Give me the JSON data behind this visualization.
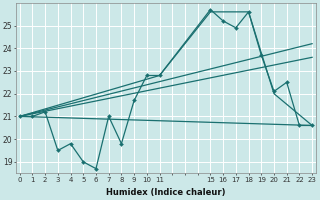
{
  "bg_color": "#cce8e8",
  "grid_color": "#ffffff",
  "line_color": "#1a7070",
  "xlabel": "Humidex (Indice chaleur)",
  "xlim": [
    -0.3,
    23.3
  ],
  "ylim": [
    18.5,
    26.0
  ],
  "yticks": [
    19,
    20,
    21,
    22,
    23,
    24,
    25
  ],
  "xticks": [
    0,
    1,
    2,
    3,
    4,
    5,
    6,
    7,
    8,
    9,
    10,
    11,
    15,
    16,
    17,
    18,
    19,
    20,
    21,
    22,
    23
  ],
  "xtick_labels": [
    "0",
    "1",
    "2",
    "3",
    "4",
    "5",
    "6",
    "7",
    "8",
    "9",
    "10",
    "11",
    "",
    "",
    "",
    "15",
    "16",
    "17",
    "18",
    "19",
    "20",
    "21",
    "22",
    "23"
  ],
  "line1_x": [
    0,
    1,
    2,
    3,
    4,
    5,
    6,
    7,
    8,
    9,
    10,
    11,
    15,
    16,
    17,
    18,
    19,
    20,
    21,
    22,
    23
  ],
  "line1_y": [
    21.0,
    21.0,
    21.2,
    19.5,
    19.8,
    19.0,
    18.7,
    21.0,
    19.8,
    21.7,
    22.8,
    22.8,
    25.7,
    25.2,
    24.9,
    25.6,
    23.7,
    22.1,
    22.5,
    20.6,
    20.6
  ],
  "line2_x": [
    0,
    11,
    15,
    18,
    20,
    23
  ],
  "line2_y": [
    21.0,
    22.8,
    25.6,
    25.6,
    22.0,
    20.6
  ],
  "line3_x": [
    0,
    23
  ],
  "line3_y": [
    21.0,
    24.2
  ],
  "line4_x": [
    0,
    23
  ],
  "line4_y": [
    21.0,
    23.6
  ],
  "line5_x": [
    0,
    23
  ],
  "line5_y": [
    21.0,
    20.6
  ],
  "grid_xticks": [
    0,
    1,
    2,
    3,
    4,
    5,
    6,
    7,
    8,
    9,
    10,
    11,
    12,
    13,
    14,
    15,
    16,
    17,
    18,
    19,
    20,
    21,
    22,
    23
  ]
}
